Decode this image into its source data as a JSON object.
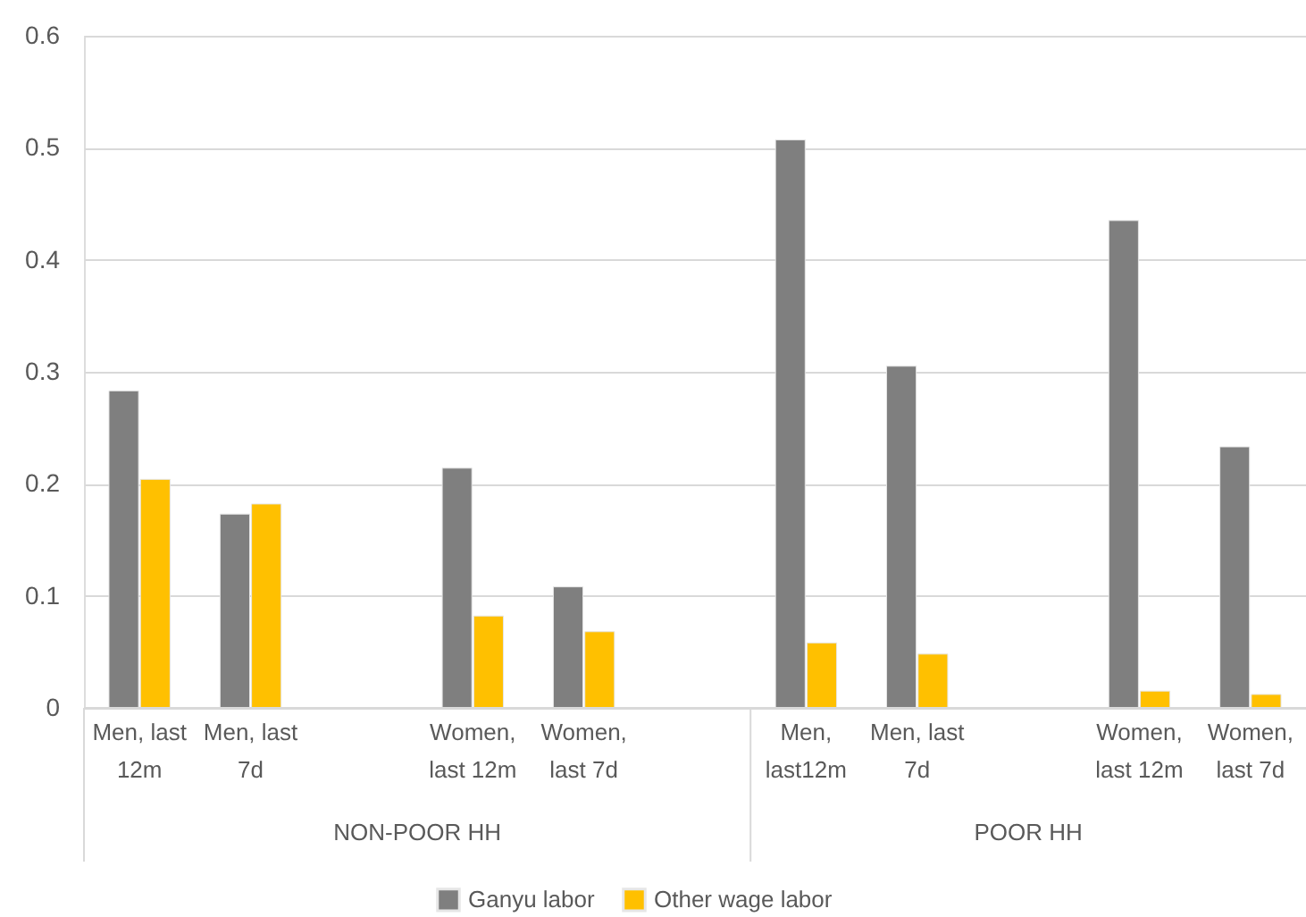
{
  "chart_data": {
    "type": "bar",
    "categories": [
      "Men, last 12m",
      "Men, last 7d",
      null,
      "Women, last 12m",
      "Women, last 7d",
      null,
      "Men, last12m",
      "Men, last 7d",
      null,
      "Women, last 12m",
      "Women, last 7d"
    ],
    "series": [
      {
        "name": "Ganyu labor",
        "color": "#7f7f7f",
        "values": [
          0.283,
          0.173,
          null,
          0.214,
          0.108,
          null,
          0.507,
          0.305,
          null,
          0.435,
          0.233
        ]
      },
      {
        "name": "Other wage labor",
        "color": "#ffc000",
        "values": [
          0.204,
          0.182,
          null,
          0.082,
          0.068,
          null,
          0.058,
          0.048,
          null,
          0.015,
          0.012
        ]
      }
    ],
    "ylim": [
      0,
      0.6
    ],
    "yticks": [
      0,
      0.1,
      0.2,
      0.3,
      0.4,
      0.5,
      0.6
    ],
    "grid": "y",
    "legend": "bottom",
    "annotations": [
      "NON-POOR HH",
      "POOR HH"
    ]
  }
}
